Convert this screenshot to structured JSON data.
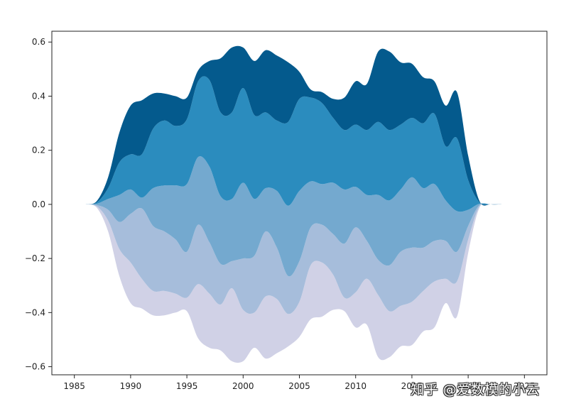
{
  "chart_data": {
    "type": "area",
    "subtype": "streamgraph",
    "title": "",
    "xlabel": "",
    "ylabel": "",
    "xlim": [
      1983,
      2027
    ],
    "ylim": [
      -0.63,
      0.64
    ],
    "grid": false,
    "x_ticks": [
      1985,
      1990,
      1995,
      2000,
      2005,
      2010,
      2015,
      2020,
      2025
    ],
    "x_tick_labels": [
      "1985",
      "1990",
      "1995",
      "2000",
      "2005",
      "2010",
      "2015",
      "2020",
      "2025"
    ],
    "y_ticks": [
      0.6,
      0.4,
      0.2,
      0.0,
      -0.2,
      -0.4,
      -0.6
    ],
    "y_tick_labels": [
      "0.6",
      "0.4",
      "0.2",
      "0.0",
      "−0.2",
      "−0.4",
      "−0.6"
    ],
    "x": [
      1986,
      1987,
      1988,
      1989,
      1990,
      1991,
      1992,
      1993,
      1994,
      1995,
      1996,
      1997,
      1998,
      1999,
      2000,
      2001,
      2002,
      2003,
      2004,
      2005,
      2006,
      2007,
      2008,
      2009,
      2010,
      2011,
      2012,
      2013,
      2014,
      2015,
      2016,
      2017,
      2018,
      2019,
      2020,
      2021,
      2022,
      2023,
      2024
    ],
    "series": [
      {
        "color": "#d0d1e6",
        "values": [
          0,
          0.005,
          0.04,
          0.1,
          0.15,
          0.11,
          0.09,
          0.09,
          0.07,
          0.05,
          0.2,
          0.2,
          0.17,
          0.27,
          0.19,
          0.13,
          0.23,
          0.2,
          0.12,
          0.13,
          0.2,
          0.2,
          0.13,
          0.05,
          0.13,
          0.17,
          0.23,
          0.17,
          0.15,
          0.16,
          0.15,
          0.17,
          0.09,
          0.13,
          0.05,
          0.005,
          0,
          0,
          0
        ]
      },
      {
        "color": "#a6bddb",
        "values": [
          0,
          0.005,
          0.04,
          0.1,
          0.18,
          0.26,
          0.24,
          0.22,
          0.2,
          0.17,
          0.22,
          0.19,
          0.15,
          0.1,
          0.19,
          0.21,
          0.24,
          0.19,
          0.14,
          0.15,
          0.14,
          0.14,
          0.15,
          0.2,
          0.24,
          0.14,
          0.13,
          0.17,
          0.2,
          0.2,
          0.16,
          0.15,
          0.14,
          0.11,
          0.05,
          0.005,
          0,
          0,
          0
        ]
      },
      {
        "color": "#74a9cf",
        "values": [
          0,
          0.005,
          0.04,
          0.1,
          0.09,
          0.04,
          0.14,
          0.17,
          0.2,
          0.25,
          0.25,
          0.28,
          0.25,
          0.23,
          0.28,
          0.21,
          0.16,
          0.21,
          0.26,
          0.26,
          0.17,
          0.15,
          0.19,
          0.2,
          0.15,
          0.17,
          0.24,
          0.24,
          0.23,
          0.26,
          0.22,
          0.21,
          0.15,
          0.15,
          0.06,
          0.005,
          0,
          0,
          0
        ]
      },
      {
        "color": "#2b8cbe",
        "values": [
          0,
          0.005,
          0.04,
          0.12,
          0.13,
          0.16,
          0.22,
          0.24,
          0.22,
          0.24,
          0.28,
          0.32,
          0.31,
          0.32,
          0.35,
          0.31,
          0.28,
          0.26,
          0.31,
          0.34,
          0.31,
          0.3,
          0.24,
          0.22,
          0.23,
          0.24,
          0.27,
          0.26,
          0.24,
          0.22,
          0.24,
          0.26,
          0.2,
          0.27,
          0.11,
          0.005,
          0,
          0,
          0
        ]
      },
      {
        "color": "#045a8d",
        "values": [
          0,
          0.005,
          0.04,
          0.11,
          0.18,
          0.2,
          0.13,
          0.1,
          0.11,
          0.08,
          0.04,
          0.07,
          0.2,
          0.24,
          0.15,
          0.2,
          0.23,
          0.24,
          0.22,
          0.1,
          0.03,
          0.04,
          0.07,
          0.12,
          0.16,
          0.17,
          0.26,
          0.29,
          0.23,
          0.2,
          0.17,
          0.12,
          0.15,
          0.17,
          0.09,
          0.005,
          0,
          0,
          0
        ]
      }
    ]
  },
  "watermark": {
    "text": "知乎 @爱数模的小云"
  }
}
